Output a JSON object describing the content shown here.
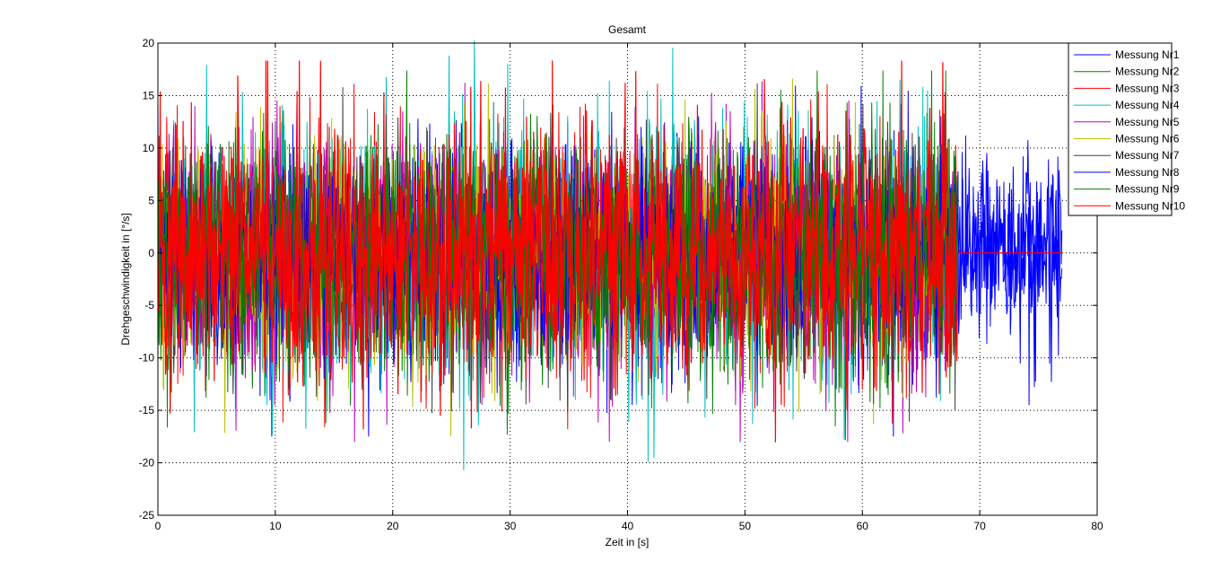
{
  "chart_data": {
    "type": "line",
    "title": "Gesamt",
    "xlabel": "Zeit in [s]",
    "ylabel": "Drehgeschwindigkeit in [°/s]",
    "xlim": [
      0,
      80
    ],
    "ylim": [
      -25,
      20
    ],
    "x_ticks": [
      0,
      10,
      20,
      30,
      40,
      50,
      60,
      70,
      80
    ],
    "y_ticks": [
      -25,
      -20,
      -15,
      -10,
      -5,
      0,
      5,
      10,
      15,
      20
    ],
    "grid": true,
    "grid_style": "dotted",
    "legend_position": "top-right, outside",
    "signal_description": "noise around 0",
    "series": [
      {
        "name": "Messung Nr1",
        "color": "#0000ff",
        "x_end": 68.1,
        "amplitude_peak": 17.5
      },
      {
        "name": "Messung Nr2",
        "color": "#008000",
        "x_end": 68.1,
        "amplitude_peak": 18.3
      },
      {
        "name": "Messung Nr3",
        "color": "#ff0000",
        "x_end": 68.1,
        "amplitude_peak": 18.5
      },
      {
        "name": "Messung Nr4",
        "color": "#00bfbf",
        "x_end": 68.1,
        "amplitude_peak": 21.3
      },
      {
        "name": "Messung Nr5",
        "color": "#bf00bf",
        "x_end": 68.1,
        "amplitude_peak": 18.0
      },
      {
        "name": "Messung Nr6",
        "color": "#bfbf00",
        "x_end": 68.1,
        "amplitude_peak": 17.5
      },
      {
        "name": "Messung Nr7",
        "color": "#404040",
        "x_end": 68.1,
        "amplitude_peak": 17.0
      },
      {
        "name": "Messung Nr8",
        "color": "#0000ff",
        "x_end": 77.0,
        "amplitude_peak": 14.5
      },
      {
        "name": "Messung Nr9",
        "color": "#008000",
        "x_end": 68.1,
        "amplitude_peak": 18.3
      },
      {
        "name": "Messung Nr10",
        "color": "#ff0000",
        "x_end": 68.1,
        "x_flat_end": 77.0,
        "amplitude_peak": 19.3
      }
    ]
  }
}
